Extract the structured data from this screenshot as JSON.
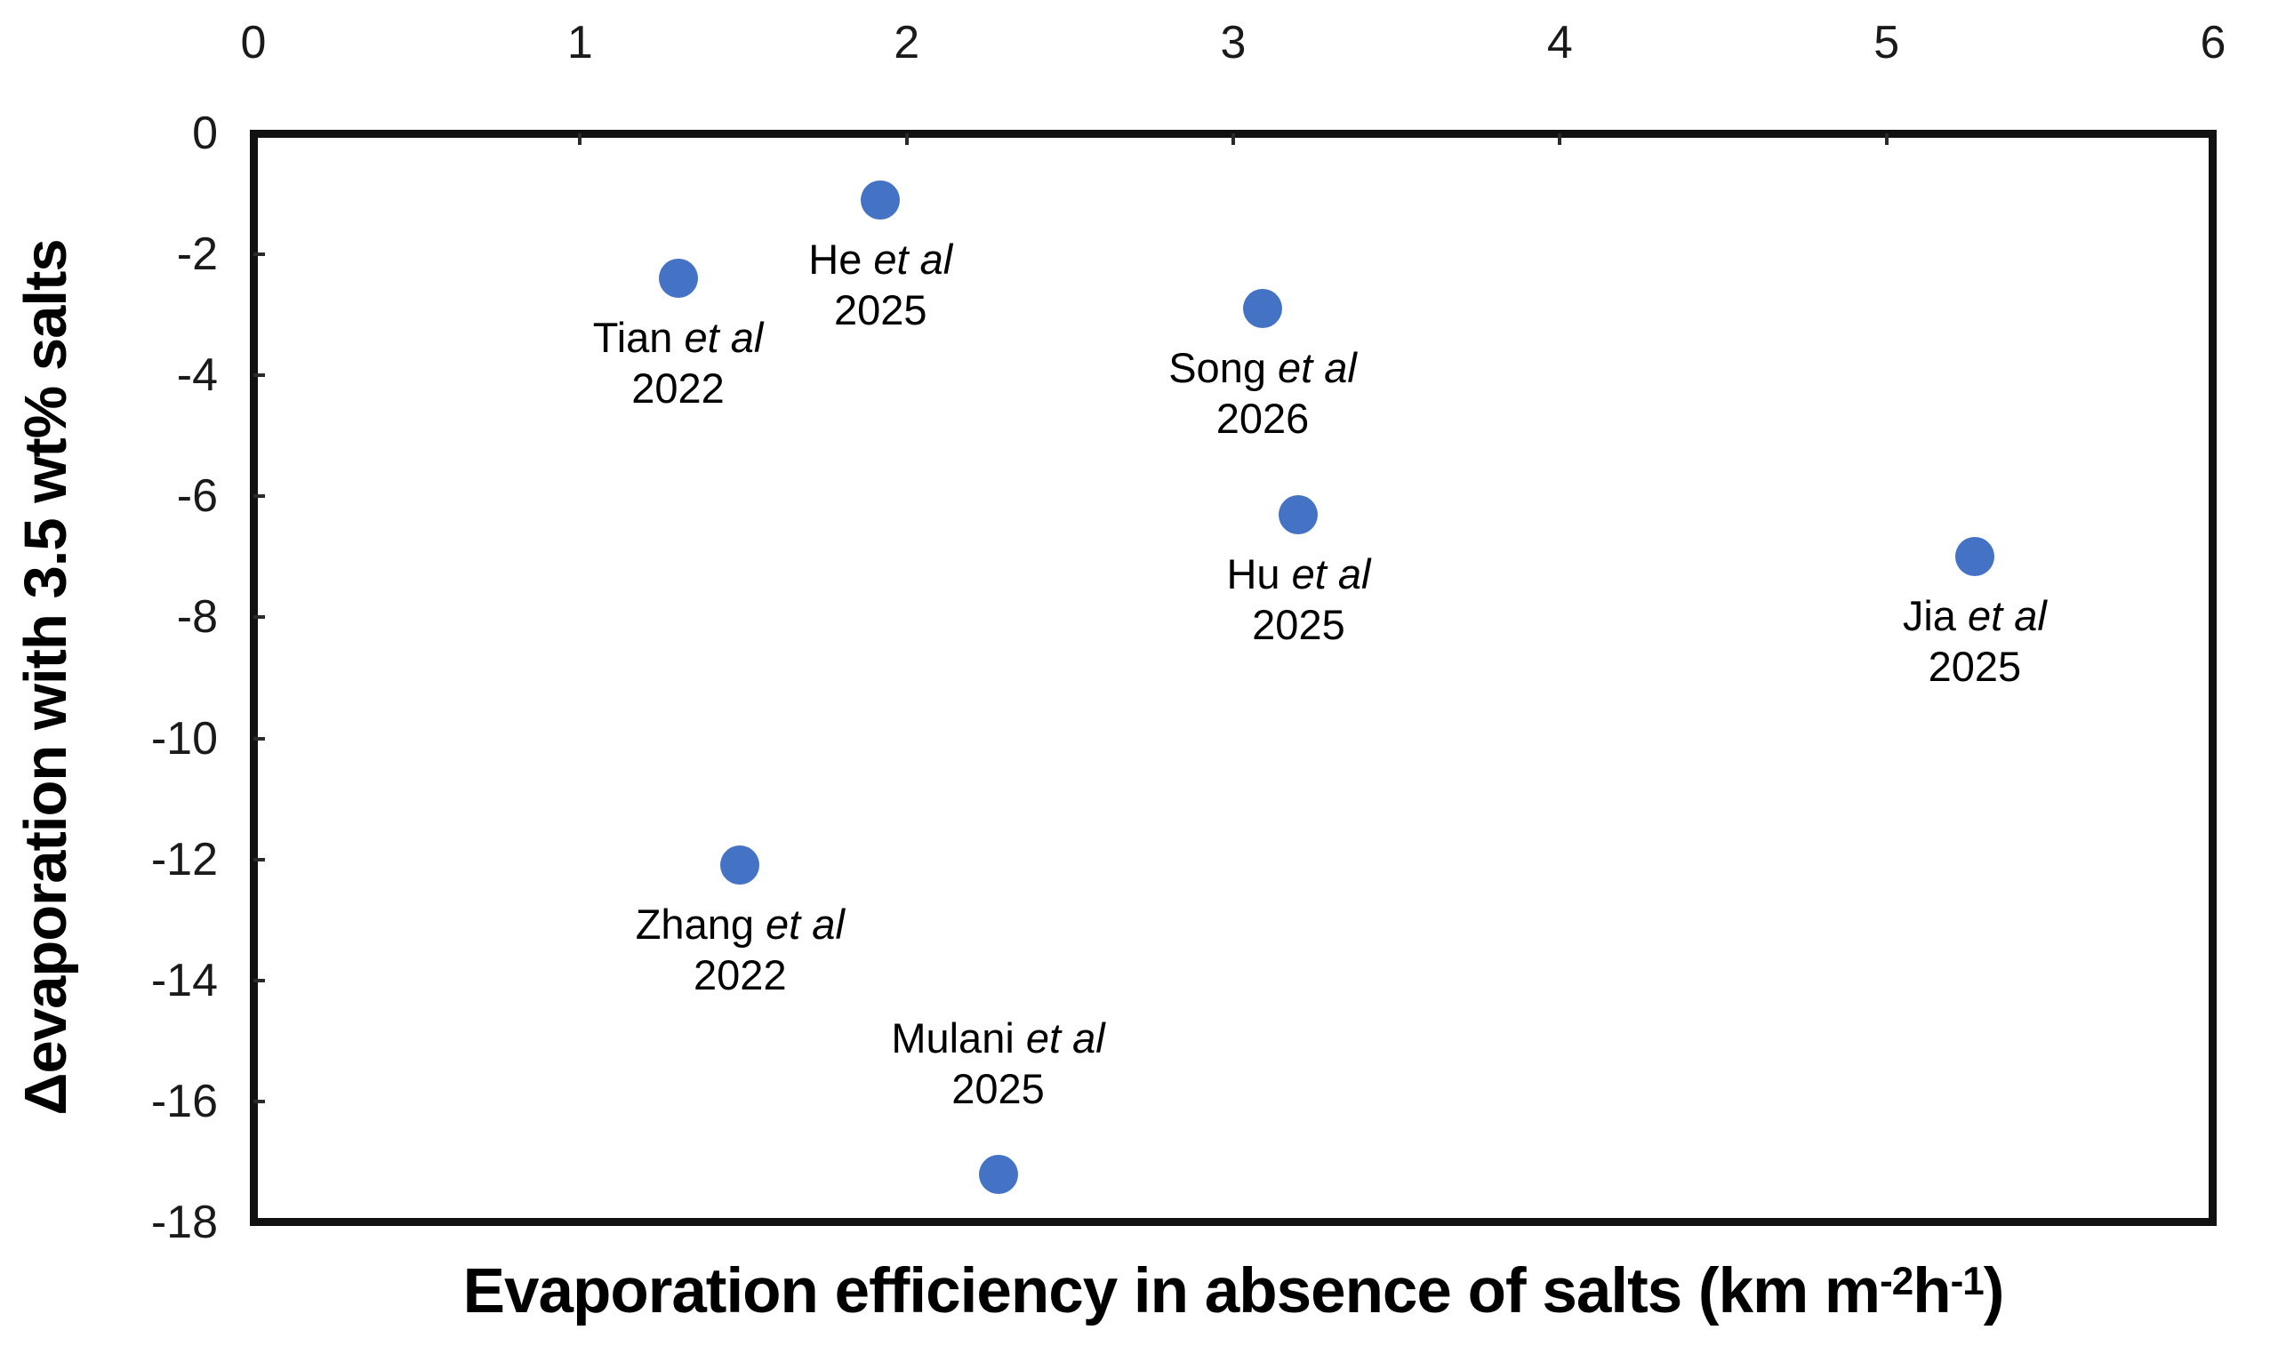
{
  "figure": {
    "background_color": "#ffffff",
    "axis_color": "#111111",
    "point_color": "#4472C4",
    "text_color": "#000000"
  },
  "chart_data": {
    "type": "scatter",
    "title": "",
    "xlabel": "Evaporation efficiency in absence of salts (km m⁻²h⁻¹)",
    "xlabel_segments": [
      {
        "t": "Evaporation efficiency in absence of salts (km m"
      },
      {
        "t": "-2",
        "sup": true
      },
      {
        "t": "h"
      },
      {
        "t": "-1",
        "sup": true
      },
      {
        "t": ")"
      }
    ],
    "ylabel": "Δevaporation with 3.5 wt% salts",
    "xlim": [
      0,
      6
    ],
    "ylim": [
      -18,
      0
    ],
    "x_ticks": [
      0,
      1,
      2,
      3,
      4,
      5,
      6
    ],
    "y_ticks": [
      0,
      -2,
      -4,
      -6,
      -8,
      -10,
      -12,
      -14,
      -16,
      -18
    ],
    "grid": false,
    "legend": "none",
    "x_axis_position": "top",
    "points": [
      {
        "name": "Tian",
        "etal": "et al",
        "year": "2022",
        "x": 1.3,
        "y": -2.4,
        "label_position": "below"
      },
      {
        "name": "He",
        "etal": "et al",
        "year": "2025",
        "x": 1.92,
        "y": -1.1,
        "label_position": "below"
      },
      {
        "name": "Song",
        "etal": "et al",
        "year": "2026",
        "x": 3.09,
        "y": -2.9,
        "label_position": "below"
      },
      {
        "name": "Hu",
        "etal": "et al",
        "year": "2025",
        "x": 3.2,
        "y": -6.3,
        "label_position": "below"
      },
      {
        "name": "Jia",
        "etal": "et al",
        "year": "2025",
        "x": 5.27,
        "y": -7.0,
        "label_position": "below"
      },
      {
        "name": "Zhang",
        "etal": "et al",
        "year": "2022",
        "x": 1.49,
        "y": -12.1,
        "label_position": "below"
      },
      {
        "name": "Mulani",
        "etal": "et al",
        "year": "2025",
        "x": 2.28,
        "y": -17.2,
        "label_position": "above"
      }
    ]
  }
}
